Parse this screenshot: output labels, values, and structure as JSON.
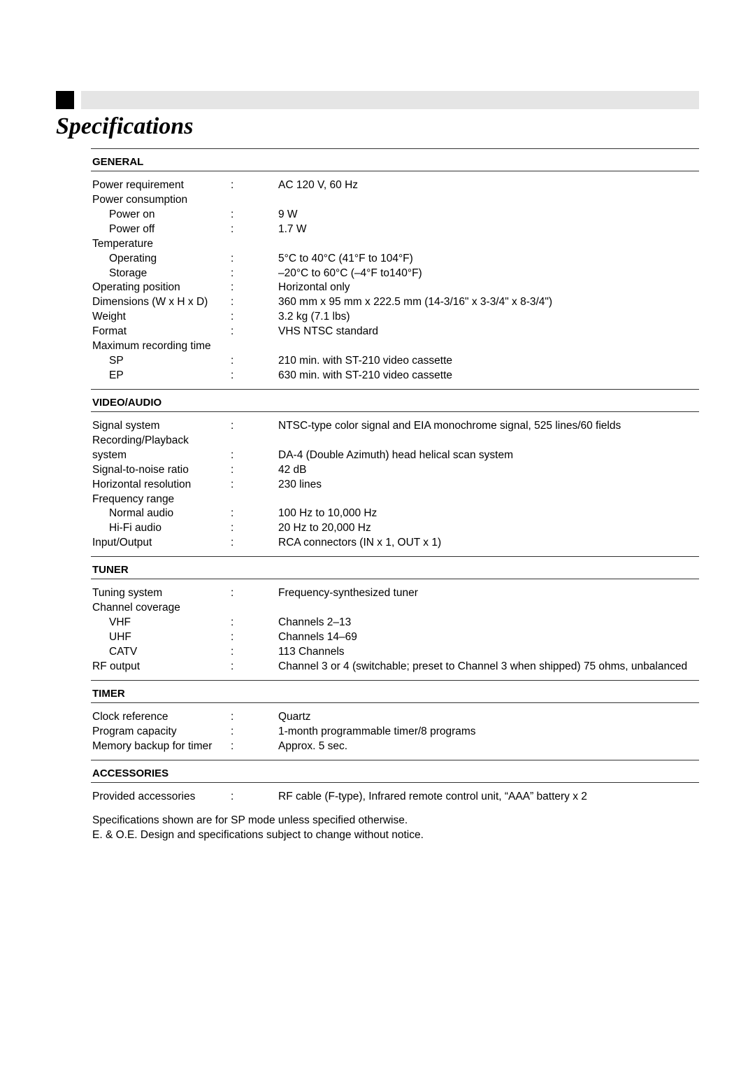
{
  "title": "Specifications",
  "styles": {
    "page_background": "#ffffff",
    "text_color": "#000000",
    "gray_bar": "#e5e5e5",
    "square_color": "#000000",
    "rule_color": "#333333",
    "body_font": "Trebuchet MS",
    "title_font": "Times New Roman",
    "title_fontsize": 34,
    "body_fontsize": 15.5,
    "header_fontsize": 15
  },
  "sections": [
    {
      "header": "GENERAL",
      "rows": [
        {
          "indent": false,
          "label": "Power requirement",
          "colon": ":",
          "value": "AC 120 V, 60 Hz"
        },
        {
          "indent": false,
          "label": "Power consumption",
          "colon": "",
          "value": ""
        },
        {
          "indent": true,
          "label": "Power on",
          "colon": ":",
          "value": "9 W"
        },
        {
          "indent": true,
          "label": "Power off",
          "colon": ":",
          "value": "1.7 W"
        },
        {
          "indent": false,
          "label": "Temperature",
          "colon": "",
          "value": ""
        },
        {
          "indent": true,
          "label": "Operating",
          "colon": ":",
          "value": "5°C to 40°C (41°F to 104°F)"
        },
        {
          "indent": true,
          "label": "Storage",
          "colon": ":",
          "value": "–20°C to 60°C (–4°F to140°F)"
        },
        {
          "indent": false,
          "label": "Operating position",
          "colon": ":",
          "value": "Horizontal only"
        },
        {
          "indent": false,
          "label": "Dimensions (W x H x D)",
          "colon": ":",
          "value": "360 mm x 95 mm x 222.5 mm (14-3/16\" x 3-3/4\" x 8-3/4\")"
        },
        {
          "indent": false,
          "label": "Weight",
          "colon": ":",
          "value": "3.2 kg (7.1 lbs)"
        },
        {
          "indent": false,
          "label": "Format",
          "colon": ":",
          "value": "VHS NTSC standard"
        },
        {
          "indent": false,
          "label": "Maximum recording time",
          "colon": "",
          "value": ""
        },
        {
          "indent": true,
          "label": "SP",
          "colon": ":",
          "value": "210 min. with ST-210 video cassette"
        },
        {
          "indent": true,
          "label": "EP",
          "colon": ":",
          "value": "630 min. with ST-210 video cassette"
        }
      ]
    },
    {
      "header": "VIDEO/AUDIO",
      "rows": [
        {
          "indent": false,
          "label": "Signal system",
          "colon": ":",
          "value": "NTSC-type color signal and EIA monochrome signal, 525 lines/60 fields"
        },
        {
          "indent": false,
          "label": "Recording/Playback",
          "colon": "",
          "value": ""
        },
        {
          "indent": false,
          "label": "system",
          "colon": ":",
          "value": "DA-4 (Double Azimuth) head helical scan system"
        },
        {
          "indent": false,
          "label": "Signal-to-noise ratio",
          "colon": ":",
          "value": "42 dB"
        },
        {
          "indent": false,
          "label": "Horizontal resolution",
          "colon": ":",
          "value": "230 lines"
        },
        {
          "indent": false,
          "label": "Frequency range",
          "colon": "",
          "value": ""
        },
        {
          "indent": true,
          "label": "Normal audio",
          "colon": ":",
          "value": "100 Hz to 10,000 Hz"
        },
        {
          "indent": true,
          "label": "Hi-Fi audio",
          "colon": ":",
          "value": "20 Hz to 20,000 Hz"
        },
        {
          "indent": false,
          "label": "Input/Output",
          "colon": ":",
          "value": "RCA connectors (IN x 1, OUT x 1)"
        }
      ]
    },
    {
      "header": "TUNER",
      "rows": [
        {
          "indent": false,
          "label": "Tuning system",
          "colon": ":",
          "value": "Frequency-synthesized tuner"
        },
        {
          "indent": false,
          "label": "Channel coverage",
          "colon": "",
          "value": ""
        },
        {
          "indent": true,
          "label": "VHF",
          "colon": ":",
          "value": "Channels 2–13"
        },
        {
          "indent": true,
          "label": "UHF",
          "colon": ":",
          "value": "Channels 14–69"
        },
        {
          "indent": true,
          "label": "CATV",
          "colon": ":",
          "value": "113 Channels"
        },
        {
          "indent": false,
          "label": "RF output",
          "colon": ":",
          "value": "Channel 3 or 4 (switchable; preset to Channel 3 when shipped) 75 ohms, unbalanced"
        }
      ]
    },
    {
      "header": "TIMER",
      "rows": [
        {
          "indent": false,
          "label": "Clock reference",
          "colon": ":",
          "value": "Quartz"
        },
        {
          "indent": false,
          "label": "Program capacity",
          "colon": ":",
          "value": "1-month programmable timer/8 programs"
        },
        {
          "indent": false,
          "label": "Memory backup for timer",
          "colon": ":",
          "value": "Approx. 5 sec."
        }
      ]
    },
    {
      "header": "ACCESSORIES",
      "rows": [
        {
          "indent": false,
          "label": "Provided accessories",
          "colon": ":",
          "value": "RF cable (F-type), Infrared remote control unit, “AAA” battery x 2"
        }
      ]
    }
  ],
  "footnotes": [
    "Specifications shown are for SP mode unless specified otherwise.",
    "E. & O.E. Design and specifications subject to change without notice."
  ]
}
